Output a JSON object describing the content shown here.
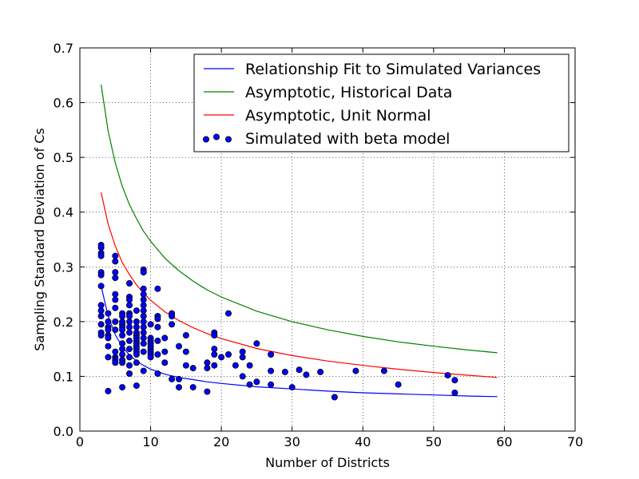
{
  "chart_data": {
    "type": "scatter",
    "title": "",
    "xlabel": "Number of Districts",
    "ylabel": "Sampling Standard Deviation of Cs",
    "xlim": [
      0,
      70
    ],
    "ylim": [
      0.0,
      0.7
    ],
    "xticks": [
      0,
      10,
      20,
      30,
      40,
      50,
      60,
      70
    ],
    "yticks": [
      0.0,
      0.1,
      0.2,
      0.3,
      0.4,
      0.5,
      0.6,
      0.7
    ],
    "xtick_labels": [
      "0",
      "10",
      "20",
      "30",
      "40",
      "50",
      "60",
      "70"
    ],
    "ytick_labels": [
      "0.0",
      "0.1",
      "0.2",
      "0.3",
      "0.4",
      "0.5",
      "0.6",
      "0.7"
    ],
    "grid": true,
    "legend_position": "top-right",
    "series": [
      {
        "name": "Relationship Fit to Simulated Variances",
        "kind": "line",
        "color": "#0000ff",
        "x": [
          3,
          4,
          5,
          6,
          7,
          8,
          9,
          10,
          12,
          14,
          16,
          18,
          20,
          25,
          30,
          35,
          40,
          45,
          50,
          55,
          59
        ],
        "y": [
          0.265,
          0.21,
          0.176,
          0.154,
          0.139,
          0.128,
          0.12,
          0.113,
          0.104,
          0.098,
          0.094,
          0.09,
          0.087,
          0.081,
          0.077,
          0.073,
          0.07,
          0.068,
          0.066,
          0.064,
          0.063
        ]
      },
      {
        "name": "Asymptotic, Historical Data",
        "kind": "line",
        "color": "#008000",
        "x": [
          3,
          4,
          5,
          6,
          7,
          8,
          9,
          10,
          12,
          14,
          16,
          18,
          20,
          25,
          30,
          35,
          40,
          45,
          50,
          55,
          59
        ],
        "y": [
          0.633,
          0.548,
          0.49,
          0.447,
          0.414,
          0.388,
          0.365,
          0.347,
          0.316,
          0.293,
          0.274,
          0.258,
          0.245,
          0.219,
          0.2,
          0.185,
          0.173,
          0.163,
          0.155,
          0.148,
          0.143
        ]
      },
      {
        "name": "Asymptotic, Unit Normal",
        "kind": "line",
        "color": "#ff0000",
        "x": [
          3,
          4,
          5,
          6,
          7,
          8,
          9,
          10,
          12,
          14,
          16,
          18,
          20,
          25,
          30,
          35,
          40,
          45,
          50,
          55,
          59
        ],
        "y": [
          0.436,
          0.378,
          0.338,
          0.308,
          0.286,
          0.267,
          0.252,
          0.239,
          0.218,
          0.202,
          0.189,
          0.178,
          0.169,
          0.151,
          0.138,
          0.128,
          0.12,
          0.113,
          0.107,
          0.102,
          0.098
        ]
      },
      {
        "name": "Simulated with beta model",
        "kind": "scatter",
        "color": "#0000ff",
        "x": [
          3,
          3,
          3,
          3,
          3,
          3,
          3,
          3,
          3,
          3,
          3,
          3,
          3,
          4,
          4,
          4,
          4,
          4,
          4,
          4,
          4,
          4,
          5,
          5,
          5,
          5,
          5,
          5,
          5,
          5,
          5,
          5,
          5,
          5,
          5,
          6,
          6,
          6,
          6,
          6,
          6,
          6,
          6,
          6,
          6,
          6,
          6,
          6,
          7,
          7,
          7,
          7,
          7,
          7,
          7,
          7,
          7,
          7,
          7,
          7,
          7,
          7,
          8,
          8,
          8,
          8,
          8,
          8,
          8,
          8,
          8,
          8,
          8,
          8,
          8,
          8,
          9,
          9,
          9,
          9,
          9,
          9,
          9,
          9,
          9,
          9,
          9,
          9,
          9,
          9,
          9,
          10,
          10,
          10,
          10,
          10,
          10,
          10,
          10,
          10,
          11,
          11,
          11,
          11,
          11,
          11,
          11,
          12,
          12,
          12,
          13,
          13,
          13,
          13,
          14,
          14,
          14,
          15,
          15,
          15,
          16,
          16,
          18,
          18,
          18,
          19,
          19,
          19,
          19,
          19,
          20,
          21,
          21,
          22,
          23,
          23,
          23,
          24,
          24,
          25,
          25,
          27,
          27,
          27,
          29,
          30,
          31,
          32,
          34,
          36,
          39,
          43,
          45,
          52,
          53,
          53
        ],
        "y": [
          0.34,
          0.335,
          0.325,
          0.32,
          0.29,
          0.285,
          0.265,
          0.23,
          0.22,
          0.21,
          0.195,
          0.18,
          0.175,
          0.215,
          0.2,
          0.19,
          0.185,
          0.175,
          0.17,
          0.155,
          0.135,
          0.073,
          0.32,
          0.31,
          0.29,
          0.28,
          0.25,
          0.24,
          0.225,
          0.2,
          0.185,
          0.145,
          0.135,
          0.13,
          0.125,
          0.215,
          0.21,
          0.2,
          0.195,
          0.19,
          0.185,
          0.175,
          0.16,
          0.15,
          0.14,
          0.13,
          0.125,
          0.08,
          0.27,
          0.245,
          0.24,
          0.23,
          0.215,
          0.21,
          0.2,
          0.19,
          0.18,
          0.165,
          0.15,
          0.135,
          0.12,
          0.105,
          0.22,
          0.2,
          0.19,
          0.18,
          0.175,
          0.17,
          0.165,
          0.16,
          0.155,
          0.15,
          0.145,
          0.14,
          0.125,
          0.083,
          0.295,
          0.29,
          0.26,
          0.25,
          0.24,
          0.23,
          0.22,
          0.21,
          0.2,
          0.19,
          0.18,
          0.17,
          0.16,
          0.145,
          0.11,
          0.195,
          0.17,
          0.165,
          0.16,
          0.155,
          0.15,
          0.145,
          0.14,
          0.135,
          0.26,
          0.21,
          0.205,
          0.19,
          0.165,
          0.14,
          0.105,
          0.17,
          0.145,
          0.125,
          0.215,
          0.21,
          0.195,
          0.095,
          0.155,
          0.095,
          0.08,
          0.175,
          0.145,
          0.12,
          0.115,
          0.08,
          0.125,
          0.115,
          0.072,
          0.18,
          0.175,
          0.15,
          0.14,
          0.12,
          0.135,
          0.215,
          0.14,
          0.12,
          0.145,
          0.135,
          0.1,
          0.12,
          0.085,
          0.16,
          0.09,
          0.14,
          0.11,
          0.085,
          0.108,
          0.08,
          0.112,
          0.103,
          0.108,
          0.062,
          0.11,
          0.11,
          0.085,
          0.102,
          0.093,
          0.07
        ]
      }
    ]
  }
}
